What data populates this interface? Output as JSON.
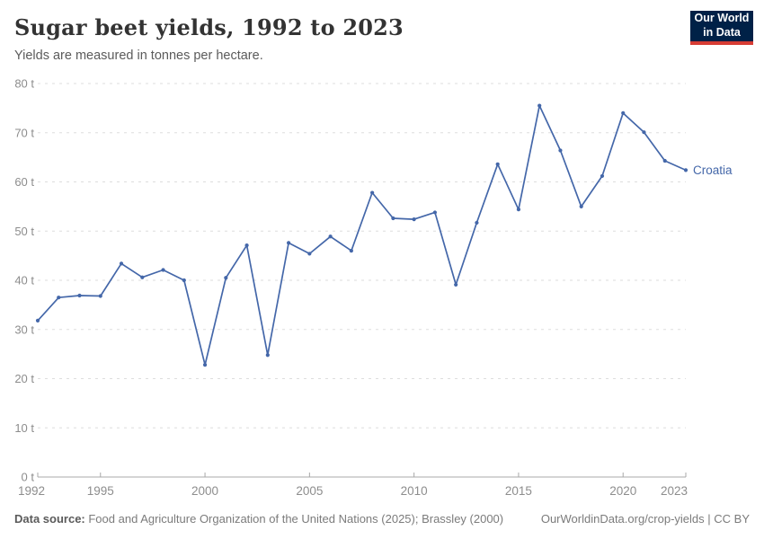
{
  "header": {
    "title": "Sugar beet yields, 1992 to 2023",
    "subtitle": "Yields are measured in tonnes per hectare.",
    "logo": {
      "line1": "Our World",
      "line2": "in Data"
    }
  },
  "chart_data": {
    "type": "line",
    "title": "Sugar beet yields, 1992 to 2023",
    "ylabel": "",
    "xlabel": "",
    "unit": "t",
    "ylim": [
      0,
      80
    ],
    "yticks": [
      0,
      10,
      20,
      30,
      40,
      50,
      60,
      70,
      80
    ],
    "xticks": [
      1992,
      1995,
      2000,
      2005,
      2010,
      2015,
      2020,
      2023
    ],
    "grid": true,
    "legend_position": "end-of-line",
    "x": [
      1992,
      1993,
      1994,
      1995,
      1996,
      1997,
      1998,
      1999,
      2000,
      2001,
      2002,
      2003,
      2004,
      2005,
      2006,
      2007,
      2008,
      2009,
      2010,
      2011,
      2012,
      2013,
      2014,
      2015,
      2016,
      2017,
      2018,
      2019,
      2020,
      2021,
      2022,
      2023
    ],
    "series": [
      {
        "name": "Croatia",
        "color": "#4467a9",
        "values": [
          31.8,
          36.5,
          36.9,
          36.8,
          43.4,
          40.6,
          42.1,
          40.0,
          22.8,
          40.5,
          47.1,
          24.8,
          47.6,
          45.4,
          48.9,
          46.0,
          57.8,
          52.6,
          52.4,
          53.8,
          39.1,
          51.7,
          63.6,
          54.4,
          75.5,
          66.4,
          55.0,
          61.2,
          74.0,
          70.1,
          64.3,
          62.4
        ]
      }
    ]
  },
  "footer": {
    "datasource_label": "Data source:",
    "datasource_text": " Food and Agriculture Organization of the United Nations (2025); Brassley (2000)",
    "link_text": "OurWorldinData.org/crop-yields | CC BY"
  },
  "colors": {
    "line": "#4467a9",
    "grid": "#dddddd",
    "axis": "#a8a8a8",
    "tick_text": "#8d8d8d",
    "logo_bg": "#002147",
    "logo_bar": "#d73c34"
  }
}
